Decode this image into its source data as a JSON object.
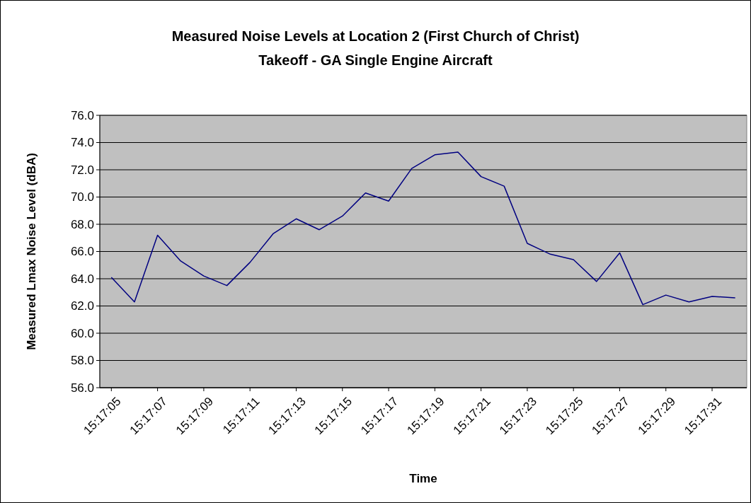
{
  "chart_data": {
    "type": "line",
    "title": "Measured Noise Levels at Location 2 (First Church of Christ)",
    "subtitle": "Takeoff - GA Single Engine Aircraft",
    "xlabel": "Time",
    "ylabel": "Measured Lmax Noise Level (dBA)",
    "categories": [
      "15:17:05",
      null,
      "15:17:07",
      null,
      "15:17:09",
      null,
      "15:17:11",
      null,
      "15:17:13",
      null,
      "15:17:15",
      null,
      "15:17:17",
      null,
      "15:17:19",
      null,
      "15:17:21",
      null,
      "15:17:23",
      null,
      "15:17:25",
      null,
      "15:17:27",
      null,
      "15:17:29",
      null,
      "15:17:31",
      null
    ],
    "series": [
      {
        "color": "#000080",
        "values": [
          64.1,
          62.3,
          67.2,
          65.3,
          64.2,
          63.5,
          65.2,
          67.3,
          68.4,
          67.6,
          68.6,
          70.3,
          69.7,
          72.1,
          73.1,
          73.3,
          71.5,
          70.8,
          66.6,
          65.8,
          65.4,
          63.8,
          65.9,
          62.1,
          62.8,
          62.3,
          62.7,
          62.6
        ]
      }
    ],
    "ylim": [
      56,
      76
    ],
    "yticks": [
      {
        "value": 56,
        "label": "56.0"
      },
      {
        "value": 58,
        "label": "58.0"
      },
      {
        "value": 60,
        "label": "60.0"
      },
      {
        "value": 62,
        "label": "62.0"
      },
      {
        "value": 64,
        "label": "64.0"
      },
      {
        "value": 66,
        "label": "66.0"
      },
      {
        "value": 68,
        "label": "68.0"
      },
      {
        "value": 70,
        "label": "70.0"
      },
      {
        "value": 72,
        "label": "72.0"
      },
      {
        "value": 74,
        "label": "74.0"
      },
      {
        "value": 76,
        "label": "76.0"
      }
    ],
    "grid": "y",
    "marker": "none",
    "line_style": "solid"
  }
}
